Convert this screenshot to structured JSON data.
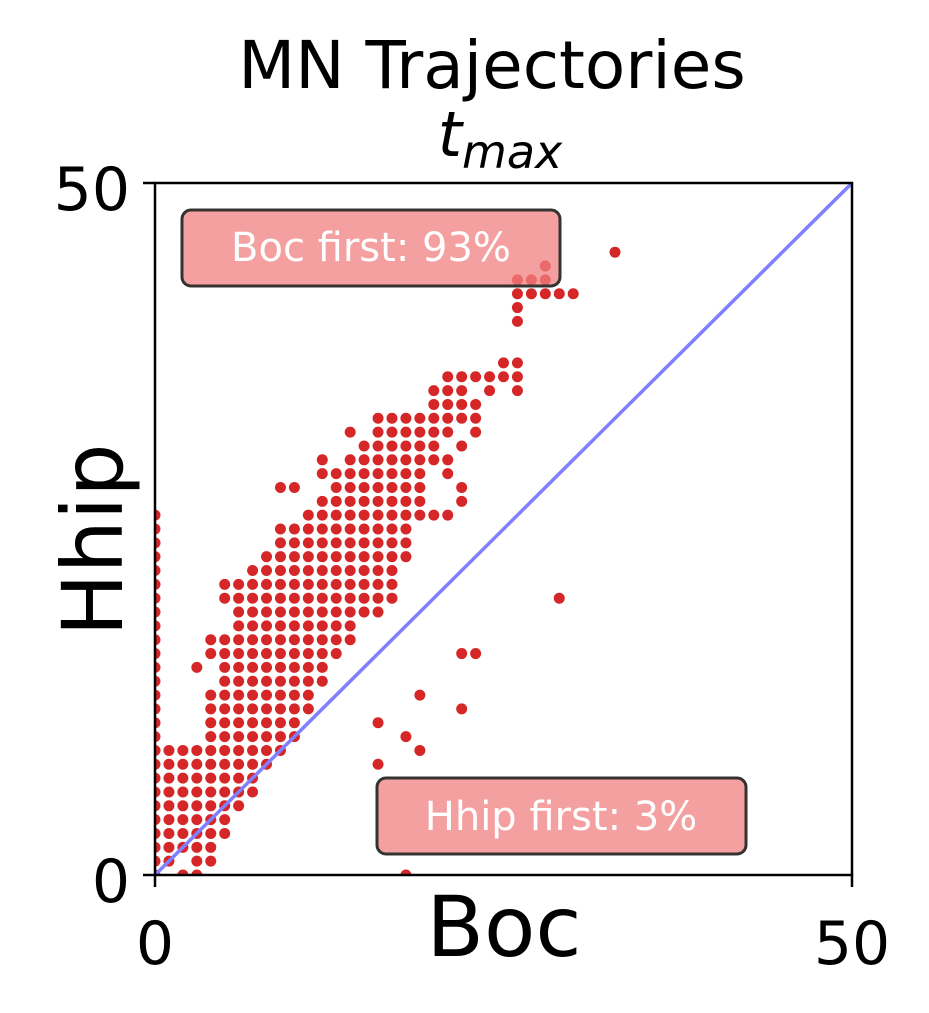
{
  "chart_data": {
    "type": "scatter",
    "title": "MN Trajectories",
    "subtitle_base": "t",
    "subtitle_sub": "max",
    "xlabel": "Boc",
    "ylabel": "Hhip",
    "xlim": [
      0,
      50
    ],
    "ylim": [
      0,
      50
    ],
    "xticks": [
      "0",
      "50"
    ],
    "yticks": [
      "0",
      "50"
    ],
    "grid": false,
    "point_color": "#d62728",
    "diagonal_color": "#7f7fff",
    "annotations": [
      {
        "text": "Boc first: 93%",
        "x": 13.5,
        "y": 45.5
      },
      {
        "text": "Hhip first: 3%",
        "x": 29,
        "y": 4.2
      }
    ],
    "points": [
      [
        0,
        0
      ],
      [
        0,
        1
      ],
      [
        0,
        2
      ],
      [
        0,
        3
      ],
      [
        0,
        4
      ],
      [
        0,
        5
      ],
      [
        0,
        6
      ],
      [
        0,
        7
      ],
      [
        0,
        8
      ],
      [
        0,
        9
      ],
      [
        0,
        10
      ],
      [
        0,
        11
      ],
      [
        0,
        12
      ],
      [
        0,
        13
      ],
      [
        0,
        14
      ],
      [
        0,
        15
      ],
      [
        0,
        16
      ],
      [
        0,
        17
      ],
      [
        0,
        18
      ],
      [
        0,
        19
      ],
      [
        0,
        20
      ],
      [
        0,
        21
      ],
      [
        0,
        22
      ],
      [
        0,
        23
      ],
      [
        0,
        24
      ],
      [
        0,
        25
      ],
      [
        0,
        26
      ],
      [
        1,
        1
      ],
      [
        1,
        2
      ],
      [
        1,
        3
      ],
      [
        1,
        4
      ],
      [
        1,
        5
      ],
      [
        1,
        6
      ],
      [
        1,
        7
      ],
      [
        1,
        8
      ],
      [
        1,
        9
      ],
      [
        2,
        0
      ],
      [
        2,
        2
      ],
      [
        2,
        3
      ],
      [
        2,
        4
      ],
      [
        2,
        5
      ],
      [
        2,
        6
      ],
      [
        2,
        7
      ],
      [
        2,
        8
      ],
      [
        2,
        9
      ],
      [
        3,
        0
      ],
      [
        3,
        1
      ],
      [
        3,
        2
      ],
      [
        3,
        3
      ],
      [
        3,
        4
      ],
      [
        3,
        5
      ],
      [
        3,
        6
      ],
      [
        3,
        7
      ],
      [
        3,
        8
      ],
      [
        3,
        9
      ],
      [
        3,
        15
      ],
      [
        4,
        1
      ],
      [
        4,
        2
      ],
      [
        4,
        3
      ],
      [
        4,
        4
      ],
      [
        4,
        5
      ],
      [
        4,
        6
      ],
      [
        4,
        7
      ],
      [
        4,
        8
      ],
      [
        4,
        9
      ],
      [
        4,
        10
      ],
      [
        4,
        11
      ],
      [
        4,
        12
      ],
      [
        4,
        13
      ],
      [
        4,
        16
      ],
      [
        4,
        17
      ],
      [
        5,
        3
      ],
      [
        5,
        4
      ],
      [
        5,
        5
      ],
      [
        5,
        6
      ],
      [
        5,
        7
      ],
      [
        5,
        8
      ],
      [
        5,
        9
      ],
      [
        5,
        10
      ],
      [
        5,
        11
      ],
      [
        5,
        12
      ],
      [
        5,
        13
      ],
      [
        5,
        14
      ],
      [
        5,
        15
      ],
      [
        5,
        16
      ],
      [
        5,
        17
      ],
      [
        5,
        20
      ],
      [
        5,
        21
      ],
      [
        6,
        5
      ],
      [
        6,
        6
      ],
      [
        6,
        7
      ],
      [
        6,
        8
      ],
      [
        6,
        9
      ],
      [
        6,
        10
      ],
      [
        6,
        11
      ],
      [
        6,
        12
      ],
      [
        6,
        13
      ],
      [
        6,
        14
      ],
      [
        6,
        15
      ],
      [
        6,
        16
      ],
      [
        6,
        17
      ],
      [
        6,
        18
      ],
      [
        6,
        19
      ],
      [
        6,
        20
      ],
      [
        6,
        21
      ],
      [
        7,
        6
      ],
      [
        7,
        7
      ],
      [
        7,
        8
      ],
      [
        7,
        9
      ],
      [
        7,
        10
      ],
      [
        7,
        11
      ],
      [
        7,
        12
      ],
      [
        7,
        13
      ],
      [
        7,
        14
      ],
      [
        7,
        15
      ],
      [
        7,
        16
      ],
      [
        7,
        17
      ],
      [
        7,
        18
      ],
      [
        7,
        19
      ],
      [
        7,
        20
      ],
      [
        7,
        21
      ],
      [
        7,
        22
      ],
      [
        8,
        8
      ],
      [
        8,
        9
      ],
      [
        8,
        10
      ],
      [
        8,
        11
      ],
      [
        8,
        12
      ],
      [
        8,
        13
      ],
      [
        8,
        14
      ],
      [
        8,
        15
      ],
      [
        8,
        16
      ],
      [
        8,
        17
      ],
      [
        8,
        18
      ],
      [
        8,
        19
      ],
      [
        8,
        20
      ],
      [
        8,
        21
      ],
      [
        8,
        22
      ],
      [
        8,
        23
      ],
      [
        9,
        9
      ],
      [
        9,
        10
      ],
      [
        9,
        11
      ],
      [
        9,
        12
      ],
      [
        9,
        13
      ],
      [
        9,
        14
      ],
      [
        9,
        15
      ],
      [
        9,
        16
      ],
      [
        9,
        17
      ],
      [
        9,
        18
      ],
      [
        9,
        19
      ],
      [
        9,
        20
      ],
      [
        9,
        21
      ],
      [
        9,
        22
      ],
      [
        9,
        23
      ],
      [
        9,
        24
      ],
      [
        9,
        25
      ],
      [
        9,
        28
      ],
      [
        10,
        10
      ],
      [
        10,
        11
      ],
      [
        10,
        12
      ],
      [
        10,
        13
      ],
      [
        10,
        14
      ],
      [
        10,
        15
      ],
      [
        10,
        16
      ],
      [
        10,
        17
      ],
      [
        10,
        18
      ],
      [
        10,
        19
      ],
      [
        10,
        20
      ],
      [
        10,
        21
      ],
      [
        10,
        22
      ],
      [
        10,
        23
      ],
      [
        10,
        24
      ],
      [
        10,
        25
      ],
      [
        10,
        28
      ],
      [
        11,
        12
      ],
      [
        11,
        13
      ],
      [
        11,
        14
      ],
      [
        11,
        15
      ],
      [
        11,
        16
      ],
      [
        11,
        17
      ],
      [
        11,
        18
      ],
      [
        11,
        19
      ],
      [
        11,
        20
      ],
      [
        11,
        21
      ],
      [
        11,
        22
      ],
      [
        11,
        23
      ],
      [
        11,
        24
      ],
      [
        11,
        25
      ],
      [
        11,
        26
      ],
      [
        12,
        14
      ],
      [
        12,
        15
      ],
      [
        12,
        16
      ],
      [
        12,
        17
      ],
      [
        12,
        18
      ],
      [
        12,
        19
      ],
      [
        12,
        20
      ],
      [
        12,
        21
      ],
      [
        12,
        22
      ],
      [
        12,
        23
      ],
      [
        12,
        24
      ],
      [
        12,
        25
      ],
      [
        12,
        26
      ],
      [
        12,
        27
      ],
      [
        12,
        29
      ],
      [
        12,
        30
      ],
      [
        13,
        16
      ],
      [
        13,
        17
      ],
      [
        13,
        18
      ],
      [
        13,
        19
      ],
      [
        13,
        20
      ],
      [
        13,
        21
      ],
      [
        13,
        22
      ],
      [
        13,
        23
      ],
      [
        13,
        24
      ],
      [
        13,
        25
      ],
      [
        13,
        26
      ],
      [
        13,
        27
      ],
      [
        13,
        28
      ],
      [
        13,
        29
      ],
      [
        14,
        17
      ],
      [
        14,
        18
      ],
      [
        14,
        19
      ],
      [
        14,
        20
      ],
      [
        14,
        21
      ],
      [
        14,
        22
      ],
      [
        14,
        23
      ],
      [
        14,
        24
      ],
      [
        14,
        25
      ],
      [
        14,
        26
      ],
      [
        14,
        27
      ],
      [
        14,
        28
      ],
      [
        14,
        29
      ],
      [
        14,
        30
      ],
      [
        14,
        32
      ],
      [
        15,
        19
      ],
      [
        15,
        20
      ],
      [
        15,
        21
      ],
      [
        15,
        22
      ],
      [
        15,
        23
      ],
      [
        15,
        24
      ],
      [
        15,
        25
      ],
      [
        15,
        26
      ],
      [
        15,
        27
      ],
      [
        15,
        28
      ],
      [
        15,
        29
      ],
      [
        15,
        30
      ],
      [
        15,
        31
      ],
      [
        16,
        8
      ],
      [
        16,
        11
      ],
      [
        16,
        19
      ],
      [
        16,
        20
      ],
      [
        16,
        21
      ],
      [
        16,
        22
      ],
      [
        16,
        23
      ],
      [
        16,
        24
      ],
      [
        16,
        25
      ],
      [
        16,
        26
      ],
      [
        16,
        27
      ],
      [
        16,
        28
      ],
      [
        16,
        29
      ],
      [
        16,
        30
      ],
      [
        16,
        31
      ],
      [
        16,
        32
      ],
      [
        16,
        33
      ],
      [
        17,
        20
      ],
      [
        17,
        21
      ],
      [
        17,
        22
      ],
      [
        17,
        23
      ],
      [
        17,
        24
      ],
      [
        17,
        25
      ],
      [
        17,
        26
      ],
      [
        17,
        27
      ],
      [
        17,
        28
      ],
      [
        17,
        29
      ],
      [
        17,
        30
      ],
      [
        17,
        31
      ],
      [
        17,
        32
      ],
      [
        17,
        33
      ],
      [
        18,
        0
      ],
      [
        18,
        10
      ],
      [
        18,
        23
      ],
      [
        18,
        24
      ],
      [
        18,
        25
      ],
      [
        18,
        26
      ],
      [
        18,
        27
      ],
      [
        18,
        28
      ],
      [
        18,
        29
      ],
      [
        18,
        30
      ],
      [
        18,
        31
      ],
      [
        18,
        32
      ],
      [
        18,
        33
      ],
      [
        19,
        9
      ],
      [
        19,
        13
      ],
      [
        19,
        26
      ],
      [
        19,
        27
      ],
      [
        19,
        28
      ],
      [
        19,
        29
      ],
      [
        19,
        30
      ],
      [
        19,
        31
      ],
      [
        19,
        32
      ],
      [
        19,
        33
      ],
      [
        20,
        26
      ],
      [
        20,
        30
      ],
      [
        20,
        31
      ],
      [
        20,
        32
      ],
      [
        20,
        33
      ],
      [
        20,
        34
      ],
      [
        20,
        35
      ],
      [
        21,
        26
      ],
      [
        21,
        29
      ],
      [
        21,
        30
      ],
      [
        21,
        32
      ],
      [
        21,
        33
      ],
      [
        21,
        34
      ],
      [
        21,
        35
      ],
      [
        21,
        36
      ],
      [
        22,
        12
      ],
      [
        22,
        16
      ],
      [
        22,
        27
      ],
      [
        22,
        28
      ],
      [
        22,
        31
      ],
      [
        22,
        33
      ],
      [
        22,
        34
      ],
      [
        22,
        35
      ],
      [
        22,
        36
      ],
      [
        23,
        16
      ],
      [
        23,
        32
      ],
      [
        23,
        33
      ],
      [
        23,
        34
      ],
      [
        23,
        36
      ],
      [
        24,
        35
      ],
      [
        24,
        36
      ],
      [
        25,
        36
      ],
      [
        25,
        37
      ],
      [
        26,
        35
      ],
      [
        26,
        36
      ],
      [
        26,
        37
      ],
      [
        26,
        40
      ],
      [
        26,
        41
      ],
      [
        26,
        42
      ],
      [
        26,
        43
      ],
      [
        27,
        42
      ],
      [
        27,
        43
      ],
      [
        28,
        42
      ],
      [
        28,
        43
      ],
      [
        28,
        44
      ],
      [
        29,
        20
      ],
      [
        29,
        42
      ],
      [
        30,
        42
      ],
      [
        33,
        45
      ]
    ]
  }
}
